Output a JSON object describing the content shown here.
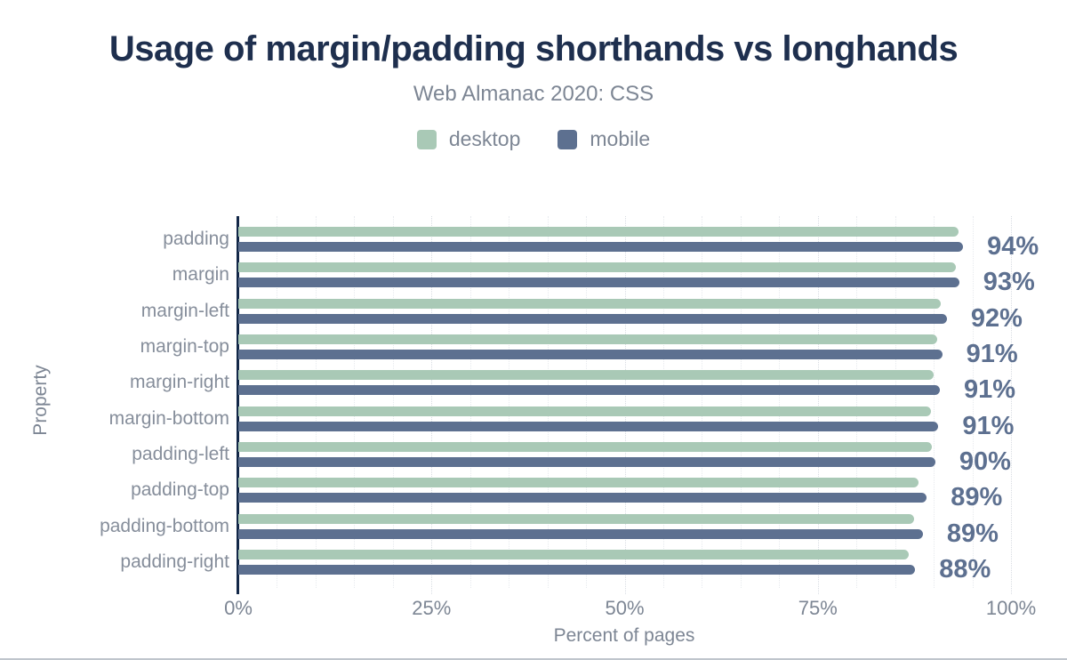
{
  "header": {
    "title": "Usage of margin/padding shorthands vs longhands",
    "subtitle": "Web Almanac 2020: CSS"
  },
  "legend": {
    "items": [
      {
        "label": "desktop",
        "color": "#a9c9b6"
      },
      {
        "label": "mobile",
        "color": "#5d7090"
      }
    ]
  },
  "chart_data": {
    "type": "bar",
    "orientation": "horizontal",
    "title": "Usage of margin/padding shorthands vs longhands",
    "subtitle": "Web Almanac 2020: CSS",
    "categories": [
      "padding",
      "margin",
      "margin-left",
      "margin-top",
      "margin-right",
      "margin-bottom",
      "padding-left",
      "padding-top",
      "padding-bottom",
      "padding-right"
    ],
    "series": [
      {
        "name": "desktop",
        "color": "#a9c9b6",
        "values": [
          93.2,
          92.9,
          90.9,
          90.4,
          90.0,
          89.7,
          89.8,
          88.0,
          87.5,
          86.8
        ]
      },
      {
        "name": "mobile",
        "color": "#5d7090",
        "values": [
          93.8,
          93.3,
          91.7,
          91.1,
          90.8,
          90.6,
          90.2,
          89.1,
          88.6,
          87.6
        ]
      }
    ],
    "value_labels": [
      "94%",
      "93%",
      "92%",
      "91%",
      "91%",
      "91%",
      "90%",
      "89%",
      "89%",
      "88%"
    ],
    "xlabel": "Percent of pages",
    "ylabel": "Property",
    "xlim": [
      0,
      100
    ],
    "xticks": [
      {
        "value": 0,
        "label": "0%"
      },
      {
        "value": 25,
        "label": "25%"
      },
      {
        "value": 50,
        "label": "50%"
      },
      {
        "value": 75,
        "label": "75%"
      },
      {
        "value": 100,
        "label": "100%"
      }
    ],
    "grid": {
      "minor_step_pct": 5,
      "major_step_pct": 25,
      "gridlines": "vertical-dotted"
    },
    "legend_position": "top-center"
  },
  "colors": {
    "title": "#1e2f4e",
    "muted_text": "#7d8694",
    "category_text": "#868e9b",
    "value_text": "#5d7090",
    "axis_line": "#132848",
    "desktop_bar": "#a9c9b6",
    "mobile_bar": "#5d7090",
    "background": "#ffffff"
  }
}
